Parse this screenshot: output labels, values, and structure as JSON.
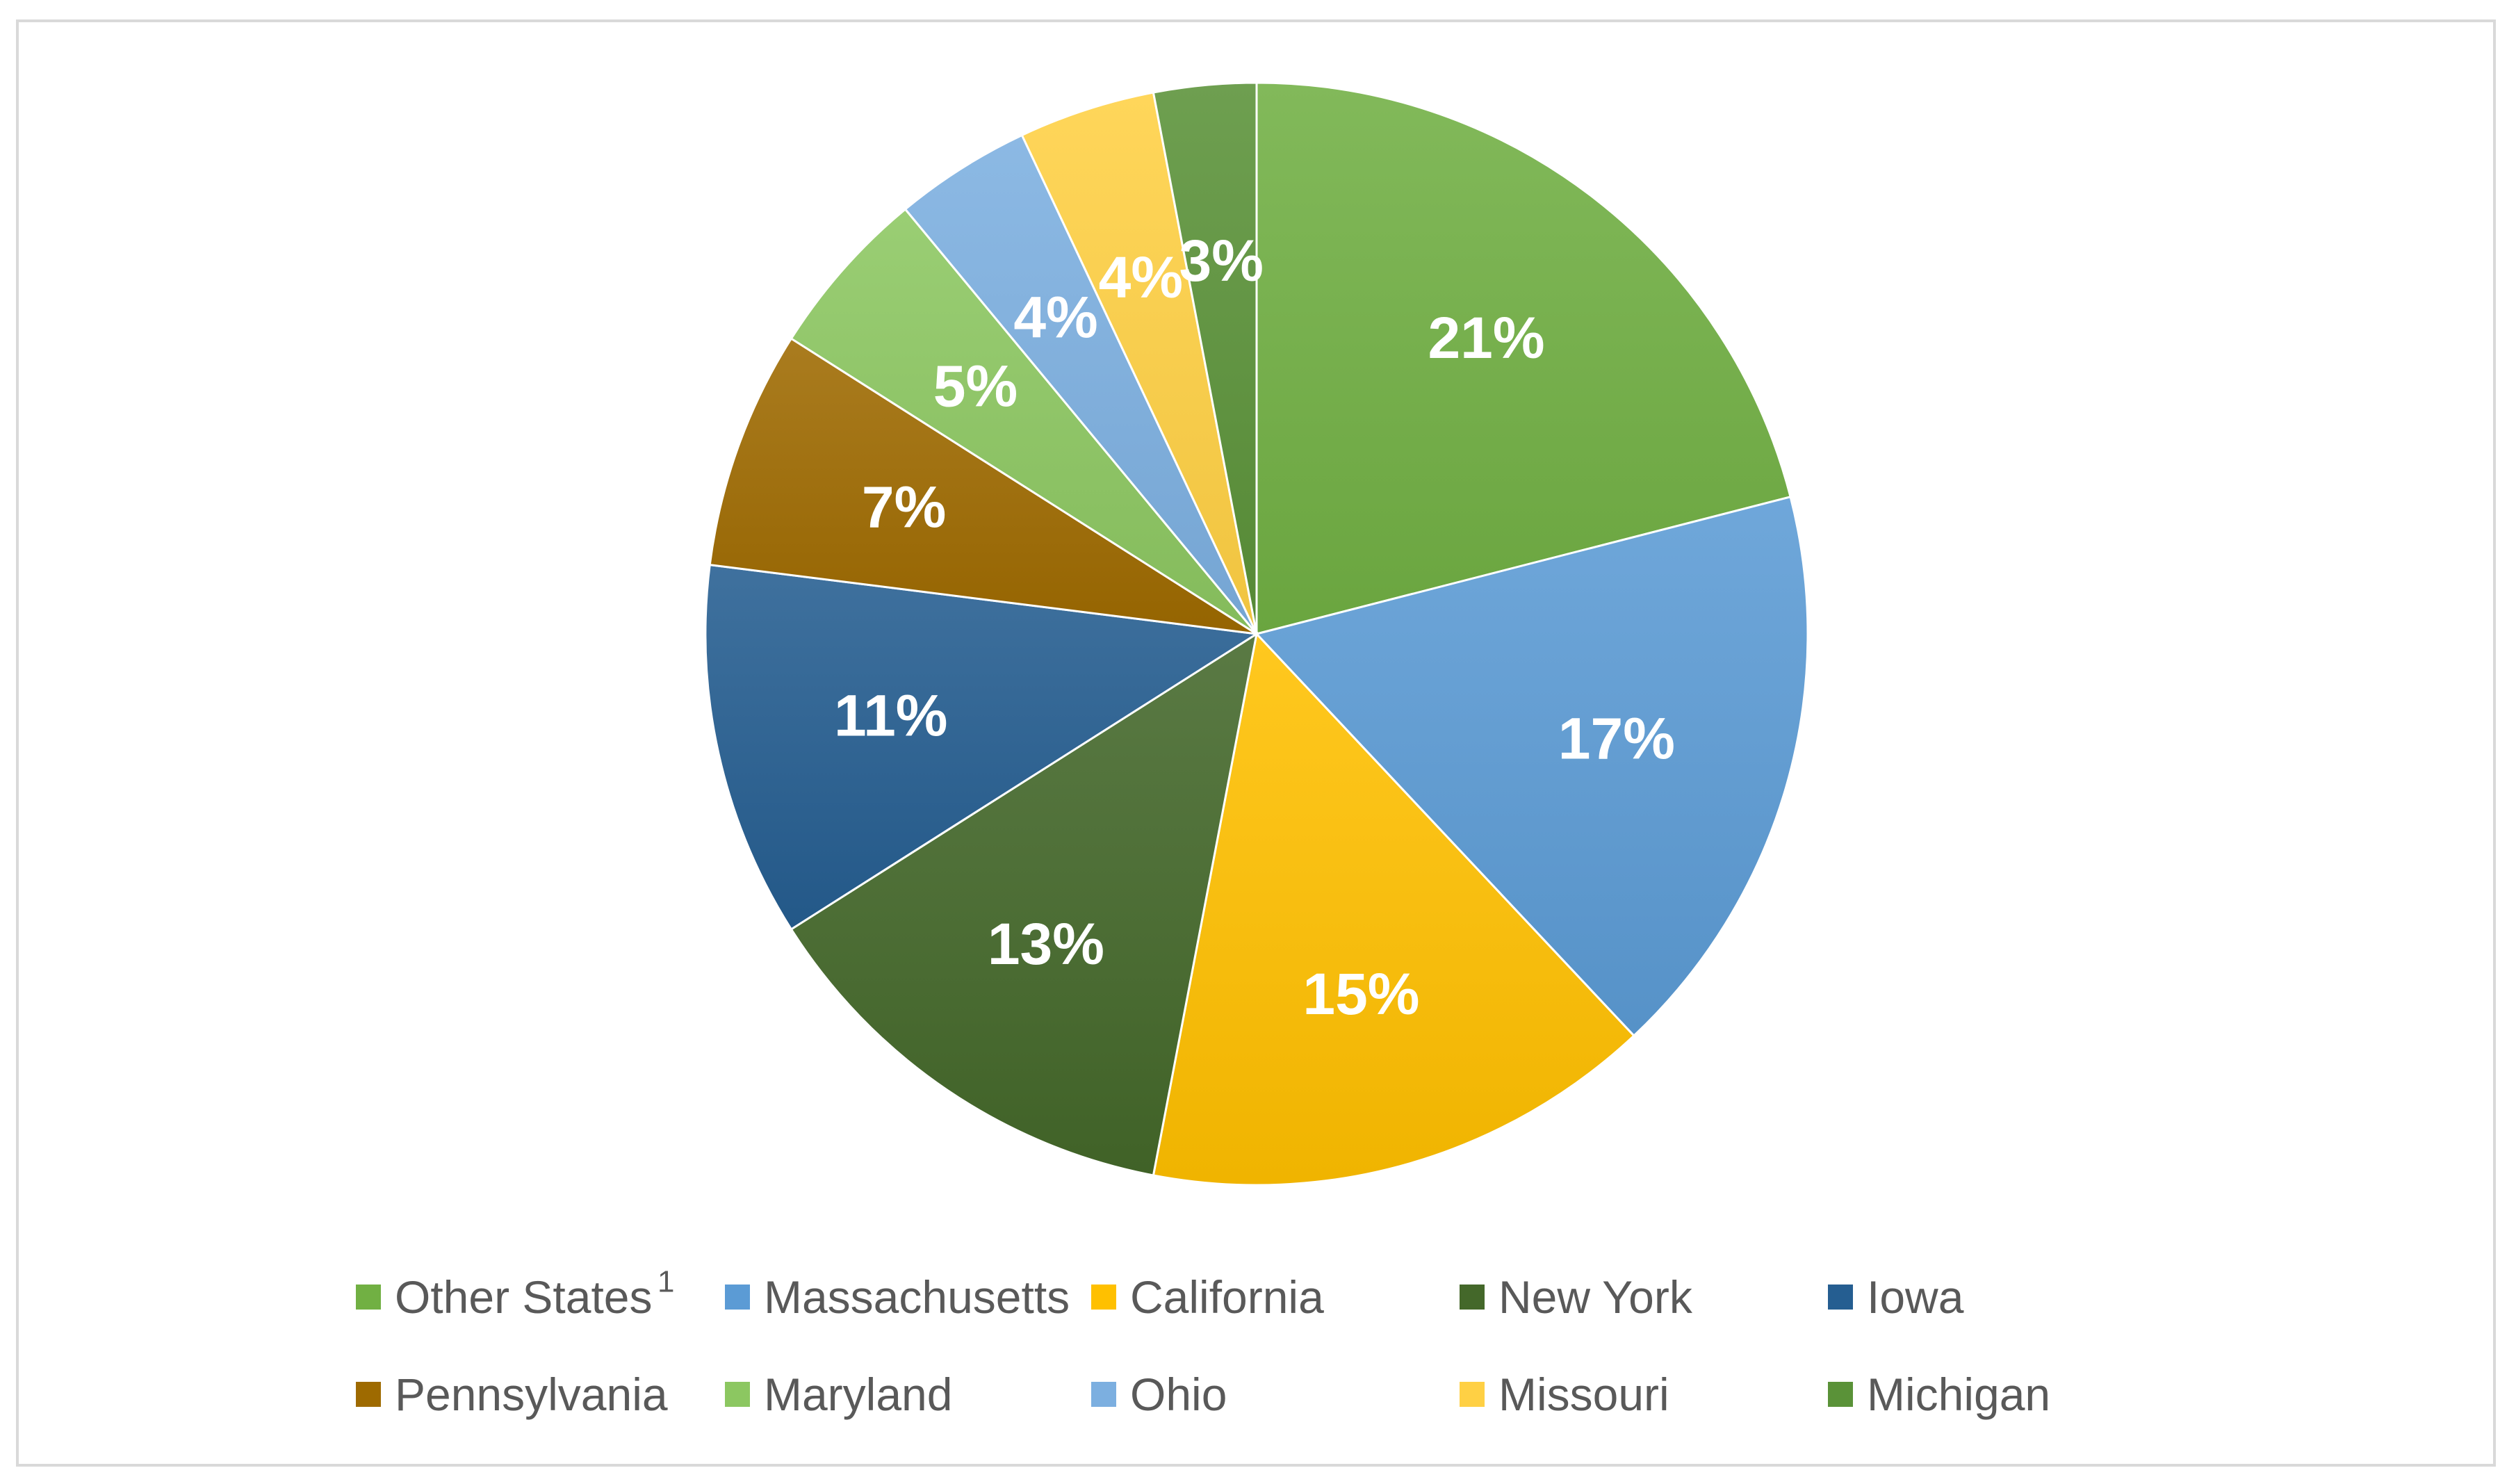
{
  "chart_data": {
    "type": "pie",
    "categories": [
      "Other States",
      "Massachusetts",
      "California",
      "New York",
      "Iowa",
      "Pennsylvania",
      "Maryland",
      "Ohio",
      "Missouri",
      "Michigan"
    ],
    "values": [
      21,
      17,
      15,
      13,
      11,
      7,
      5,
      4,
      4,
      3
    ],
    "value_labels": [
      "21%",
      "17%",
      "15%",
      "13%",
      "11%",
      "7%",
      "5%",
      "4%",
      "4%",
      "3%"
    ],
    "colors": [
      "#71b043",
      "#5b9bd5",
      "#ffc000",
      "#44682a",
      "#255e91",
      "#9e6a00",
      "#8cc761",
      "#7cafe0",
      "#ffd044",
      "#5a9238"
    ],
    "legend_labels": [
      "Other States",
      "Massachusetts",
      "California",
      "New York",
      "Iowa",
      "Pennsylvania",
      "Maryland",
      "Ohio",
      "Missouri",
      "Michigan"
    ],
    "legend_footnote_marker": "1",
    "legend_placement": "bottom",
    "start_angle": "12 o'clock",
    "direction": "clockwise"
  }
}
